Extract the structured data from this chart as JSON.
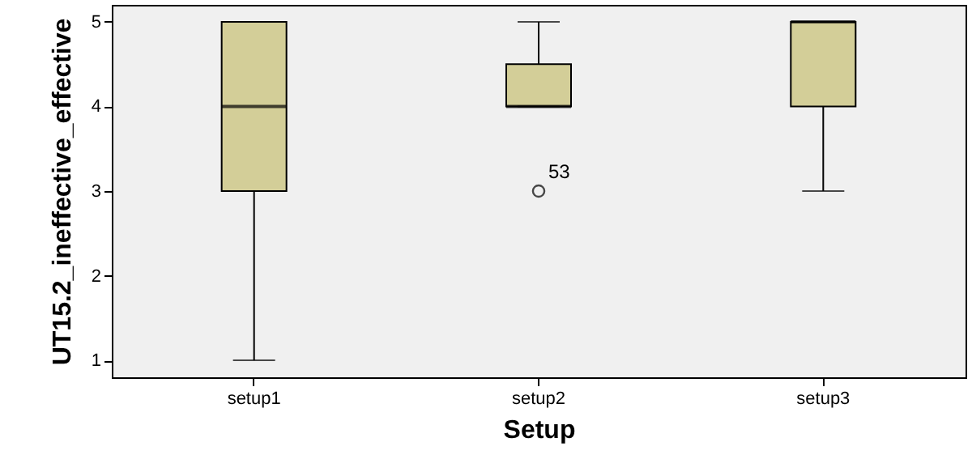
{
  "chart_data": {
    "type": "box",
    "xlabel": "Setup",
    "ylabel": "UT15.2_ineffective_effective",
    "categories": [
      "setup1",
      "setup2",
      "setup3"
    ],
    "series": [
      {
        "color": "#d3ce98",
        "boxes": [
          {
            "low": 1,
            "q1": 3,
            "median": 4,
            "q3": 5,
            "high": 5
          },
          {
            "low": 4,
            "q1": 4,
            "median": 4,
            "q3": 4.5,
            "high": 5,
            "outliers": [
              3
            ]
          },
          {
            "low": 3,
            "q1": 4,
            "median": 5,
            "q3": 5,
            "high": 5
          }
        ]
      }
    ],
    "ylim": [
      0.8,
      5.2
    ],
    "yticks": [
      1,
      2,
      3,
      4,
      5
    ],
    "grid": false,
    "annotations": [
      "53"
    ]
  }
}
